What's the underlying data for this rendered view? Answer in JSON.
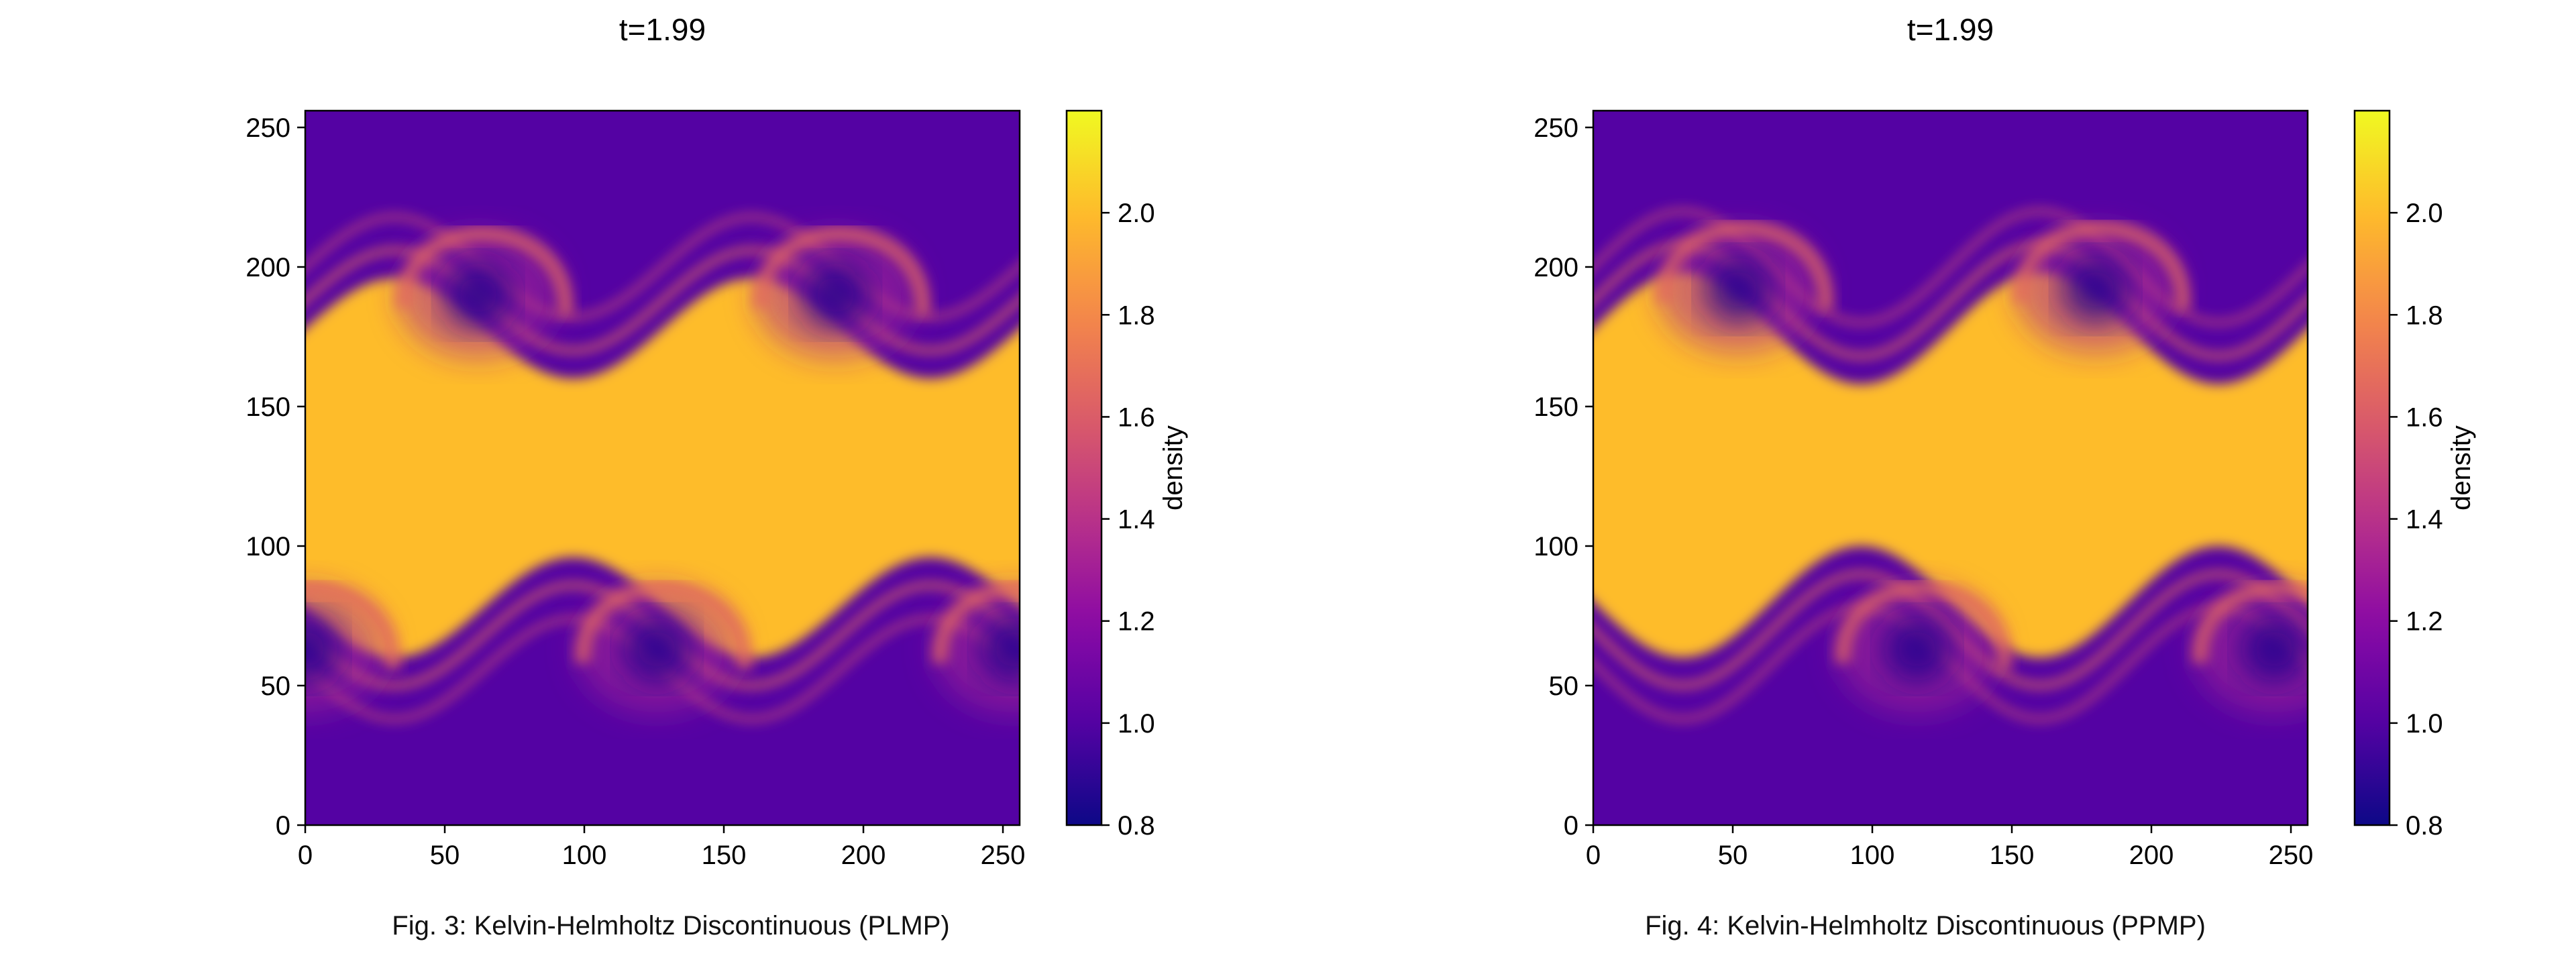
{
  "chart_data": [
    {
      "type": "heatmap",
      "title": "t=1.99",
      "caption": "Fig. 3: Kelvin-Helmholtz Discontinuous (PLMP)",
      "xlim": [
        0,
        256
      ],
      "ylim": [
        0,
        256
      ],
      "xticks": [
        "0",
        "50",
        "100",
        "150",
        "200",
        "250"
      ],
      "yticks": [
        "0",
        "50",
        "100",
        "150",
        "200",
        "250"
      ],
      "colorbar": {
        "label": "density",
        "range": [
          0.8,
          2.2
        ],
        "ticks": [
          "0.8",
          "1.0",
          "1.2",
          "1.4",
          "1.6",
          "1.8",
          "2.0"
        ]
      },
      "colormap": "plasma",
      "field": {
        "background_density": 1.0,
        "band_density": 2.0,
        "vortex_core_density": 0.85,
        "upper_interface": {
          "mean_y": 178,
          "amplitude": 18,
          "wavelength": 128,
          "phase": 0
        },
        "lower_interface": {
          "mean_y": 78,
          "amplitude": 18,
          "wavelength": 128,
          "phase": 64
        },
        "vortices": [
          {
            "x": 62,
            "y": 190
          },
          {
            "x": 190,
            "y": 190
          },
          {
            "x": 126,
            "y": 63
          },
          {
            "x": 254,
            "y": 63
          },
          {
            "x": 0,
            "y": 63
          }
        ]
      }
    },
    {
      "type": "heatmap",
      "title": "t=1.99",
      "caption": "Fig. 4: Kelvin-Helmholtz Discontinuous (PPMP)",
      "xlim": [
        0,
        256
      ],
      "ylim": [
        0,
        256
      ],
      "xticks": [
        "0",
        "50",
        "100",
        "150",
        "200",
        "250"
      ],
      "yticks": [
        "0",
        "50",
        "100",
        "150",
        "200",
        "250"
      ],
      "colorbar": {
        "label": "density",
        "range": [
          0.8,
          2.2
        ],
        "ticks": [
          "0.8",
          "1.0",
          "1.2",
          "1.4",
          "1.6",
          "1.8",
          "2.0"
        ]
      },
      "colormap": "plasma",
      "field": {
        "background_density": 1.0,
        "band_density": 2.0,
        "vortex_core_density": 0.85,
        "upper_interface": {
          "mean_y": 178,
          "amplitude": 20,
          "wavelength": 128,
          "phase": 0
        },
        "lower_interface": {
          "mean_y": 80,
          "amplitude": 20,
          "wavelength": 128,
          "phase": 64
        },
        "vortices": [
          {
            "x": 52,
            "y": 192
          },
          {
            "x": 180,
            "y": 192
          },
          {
            "x": 116,
            "y": 63
          },
          {
            "x": 244,
            "y": 63
          }
        ]
      }
    }
  ]
}
